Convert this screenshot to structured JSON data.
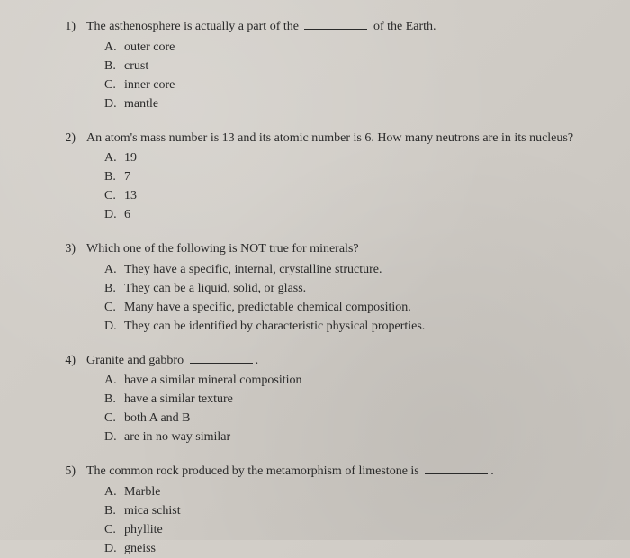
{
  "questions": [
    {
      "number": "1)",
      "text_before": "The asthenosphere is actually a part of the ",
      "text_after": " of the Earth.",
      "has_blank": true,
      "options": [
        {
          "letter": "A.",
          "text": "outer core"
        },
        {
          "letter": "B.",
          "text": "crust"
        },
        {
          "letter": "C.",
          "text": "inner core"
        },
        {
          "letter": "D.",
          "text": "mantle"
        }
      ]
    },
    {
      "number": "2)",
      "text_before": "An atom's mass number is 13 and its atomic number is 6. How many neutrons are in its nucleus?",
      "text_after": "",
      "has_blank": false,
      "options": [
        {
          "letter": "A.",
          "text": "19"
        },
        {
          "letter": "B.",
          "text": "7"
        },
        {
          "letter": "C.",
          "text": "13"
        },
        {
          "letter": "D.",
          "text": "6"
        }
      ]
    },
    {
      "number": "3)",
      "text_before": "Which one of the following is NOT true for minerals?",
      "text_after": "",
      "has_blank": false,
      "options": [
        {
          "letter": "A.",
          "text": "They have a specific, internal, crystalline structure."
        },
        {
          "letter": "B.",
          "text": "They can be a liquid, solid, or glass."
        },
        {
          "letter": "C.",
          "text": "Many have a specific, predictable chemical composition."
        },
        {
          "letter": "D.",
          "text": "They can be identified by characteristic physical properties."
        }
      ]
    },
    {
      "number": "4)",
      "text_before": "Granite and gabbro ",
      "text_after": ".",
      "has_blank": true,
      "options": [
        {
          "letter": "A.",
          "text": "have a similar mineral composition"
        },
        {
          "letter": "B.",
          "text": "have a similar texture"
        },
        {
          "letter": "C.",
          "text": "both A and B"
        },
        {
          "letter": "D.",
          "text": "are in no way similar"
        }
      ]
    },
    {
      "number": "5)",
      "text_before": "The common rock produced by the metamorphism of limestone is ",
      "text_after": ".",
      "has_blank": true,
      "options": [
        {
          "letter": "A.",
          "text": "Marble"
        },
        {
          "letter": "B.",
          "text": "mica schist"
        },
        {
          "letter": "C.",
          "text": "phyllite"
        },
        {
          "letter": "D.",
          "text": "gneiss"
        }
      ]
    }
  ],
  "styling": {
    "background_color": "#cfcbc5",
    "text_color": "#2a2a2a",
    "font_family": "Times New Roman",
    "font_size": 14,
    "blank_width": 70
  }
}
